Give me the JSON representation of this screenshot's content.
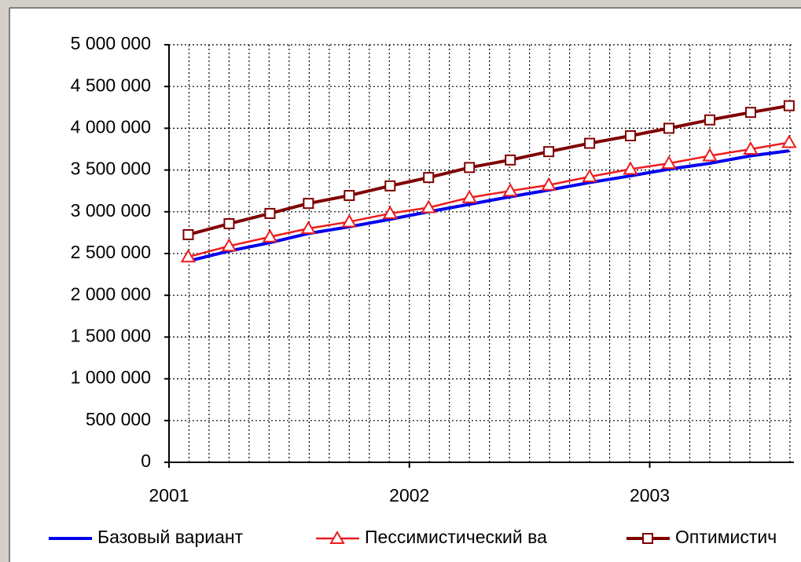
{
  "chart_data": {
    "type": "line",
    "x": [
      2001.08,
      2001.25,
      2001.42,
      2001.58,
      2001.75,
      2001.92,
      2002.08,
      2002.25,
      2002.42,
      2002.58,
      2002.75,
      2002.92,
      2003.08,
      2003.25,
      2003.42,
      2003.58
    ],
    "series": [
      {
        "name": "Базовый вариант",
        "color": "#0000ee",
        "marker": "none",
        "values": [
          2410000,
          2530000,
          2630000,
          2740000,
          2820000,
          2910000,
          3000000,
          3090000,
          3180000,
          3260000,
          3350000,
          3430000,
          3510000,
          3580000,
          3670000,
          3730000
        ]
      },
      {
        "name": "Пессимистический ва",
        "color": "#ee1c1c",
        "marker": "triangle",
        "values": [
          2460000,
          2590000,
          2700000,
          2800000,
          2880000,
          2980000,
          3050000,
          3170000,
          3250000,
          3320000,
          3420000,
          3510000,
          3580000,
          3670000,
          3750000,
          3830000
        ]
      },
      {
        "name": "Оптимистич",
        "color": "#800000",
        "marker": "square",
        "values": [
          2726000,
          2857000,
          2980000,
          3100000,
          3195000,
          3310000,
          3410000,
          3530000,
          3620000,
          3720000,
          3820000,
          3910000,
          4000000,
          4100000,
          4190000,
          4270000
        ]
      }
    ],
    "xlim": [
      2001,
      2003.6
    ],
    "xticks": [
      2001,
      2002,
      2003
    ],
    "ylim": [
      0,
      5000000
    ],
    "yticks": [
      0,
      {
        "value": 500000,
        "label": "500 000"
      },
      {
        "value": 1000000,
        "label": "1 000 000"
      },
      {
        "value": 1500000,
        "label": "1 500 000"
      },
      {
        "value": 2000000,
        "label": "2 000 000"
      },
      {
        "value": 2500000,
        "label": "2 500 000"
      },
      {
        "value": 3000000,
        "label": "3 000 000"
      },
      {
        "value": 3500000,
        "label": "3 500 000"
      },
      {
        "value": 4000000,
        "label": "4 000 000"
      },
      {
        "value": 4500000,
        "label": "4 500 000"
      },
      {
        "value": 5000000,
        "label": "5 000 000"
      }
    ],
    "grid": true,
    "legend": "bottom"
  }
}
